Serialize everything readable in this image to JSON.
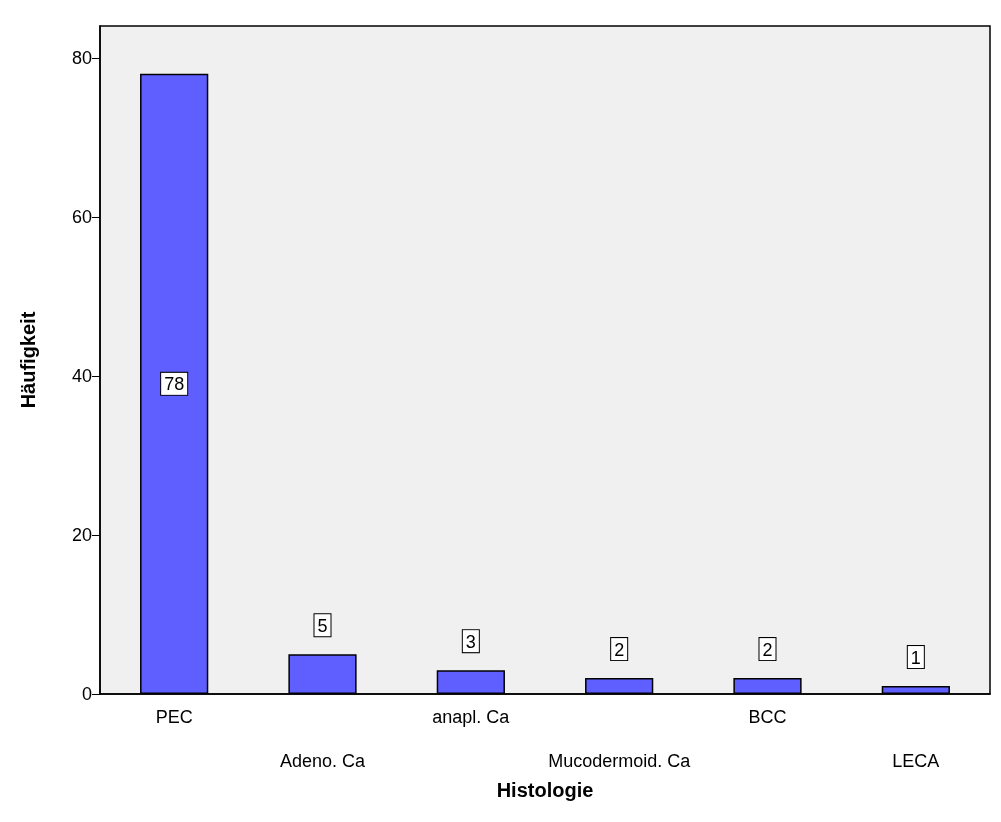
{
  "chart_data": {
    "type": "bar",
    "xlabel": "Histologie",
    "ylabel": "Häufigkeit",
    "categories": [
      "PEC",
      "Adeno. Ca",
      "anapl. Ca",
      "Mucodermoid. Ca",
      "BCC",
      "LECA"
    ],
    "values": [
      78,
      5,
      3,
      2,
      2,
      1
    ],
    "color": "#5f5fff",
    "ylim": [
      0,
      84
    ],
    "yticks": [
      0,
      20,
      40,
      60,
      80
    ],
    "grid": false,
    "data_labels": true
  }
}
